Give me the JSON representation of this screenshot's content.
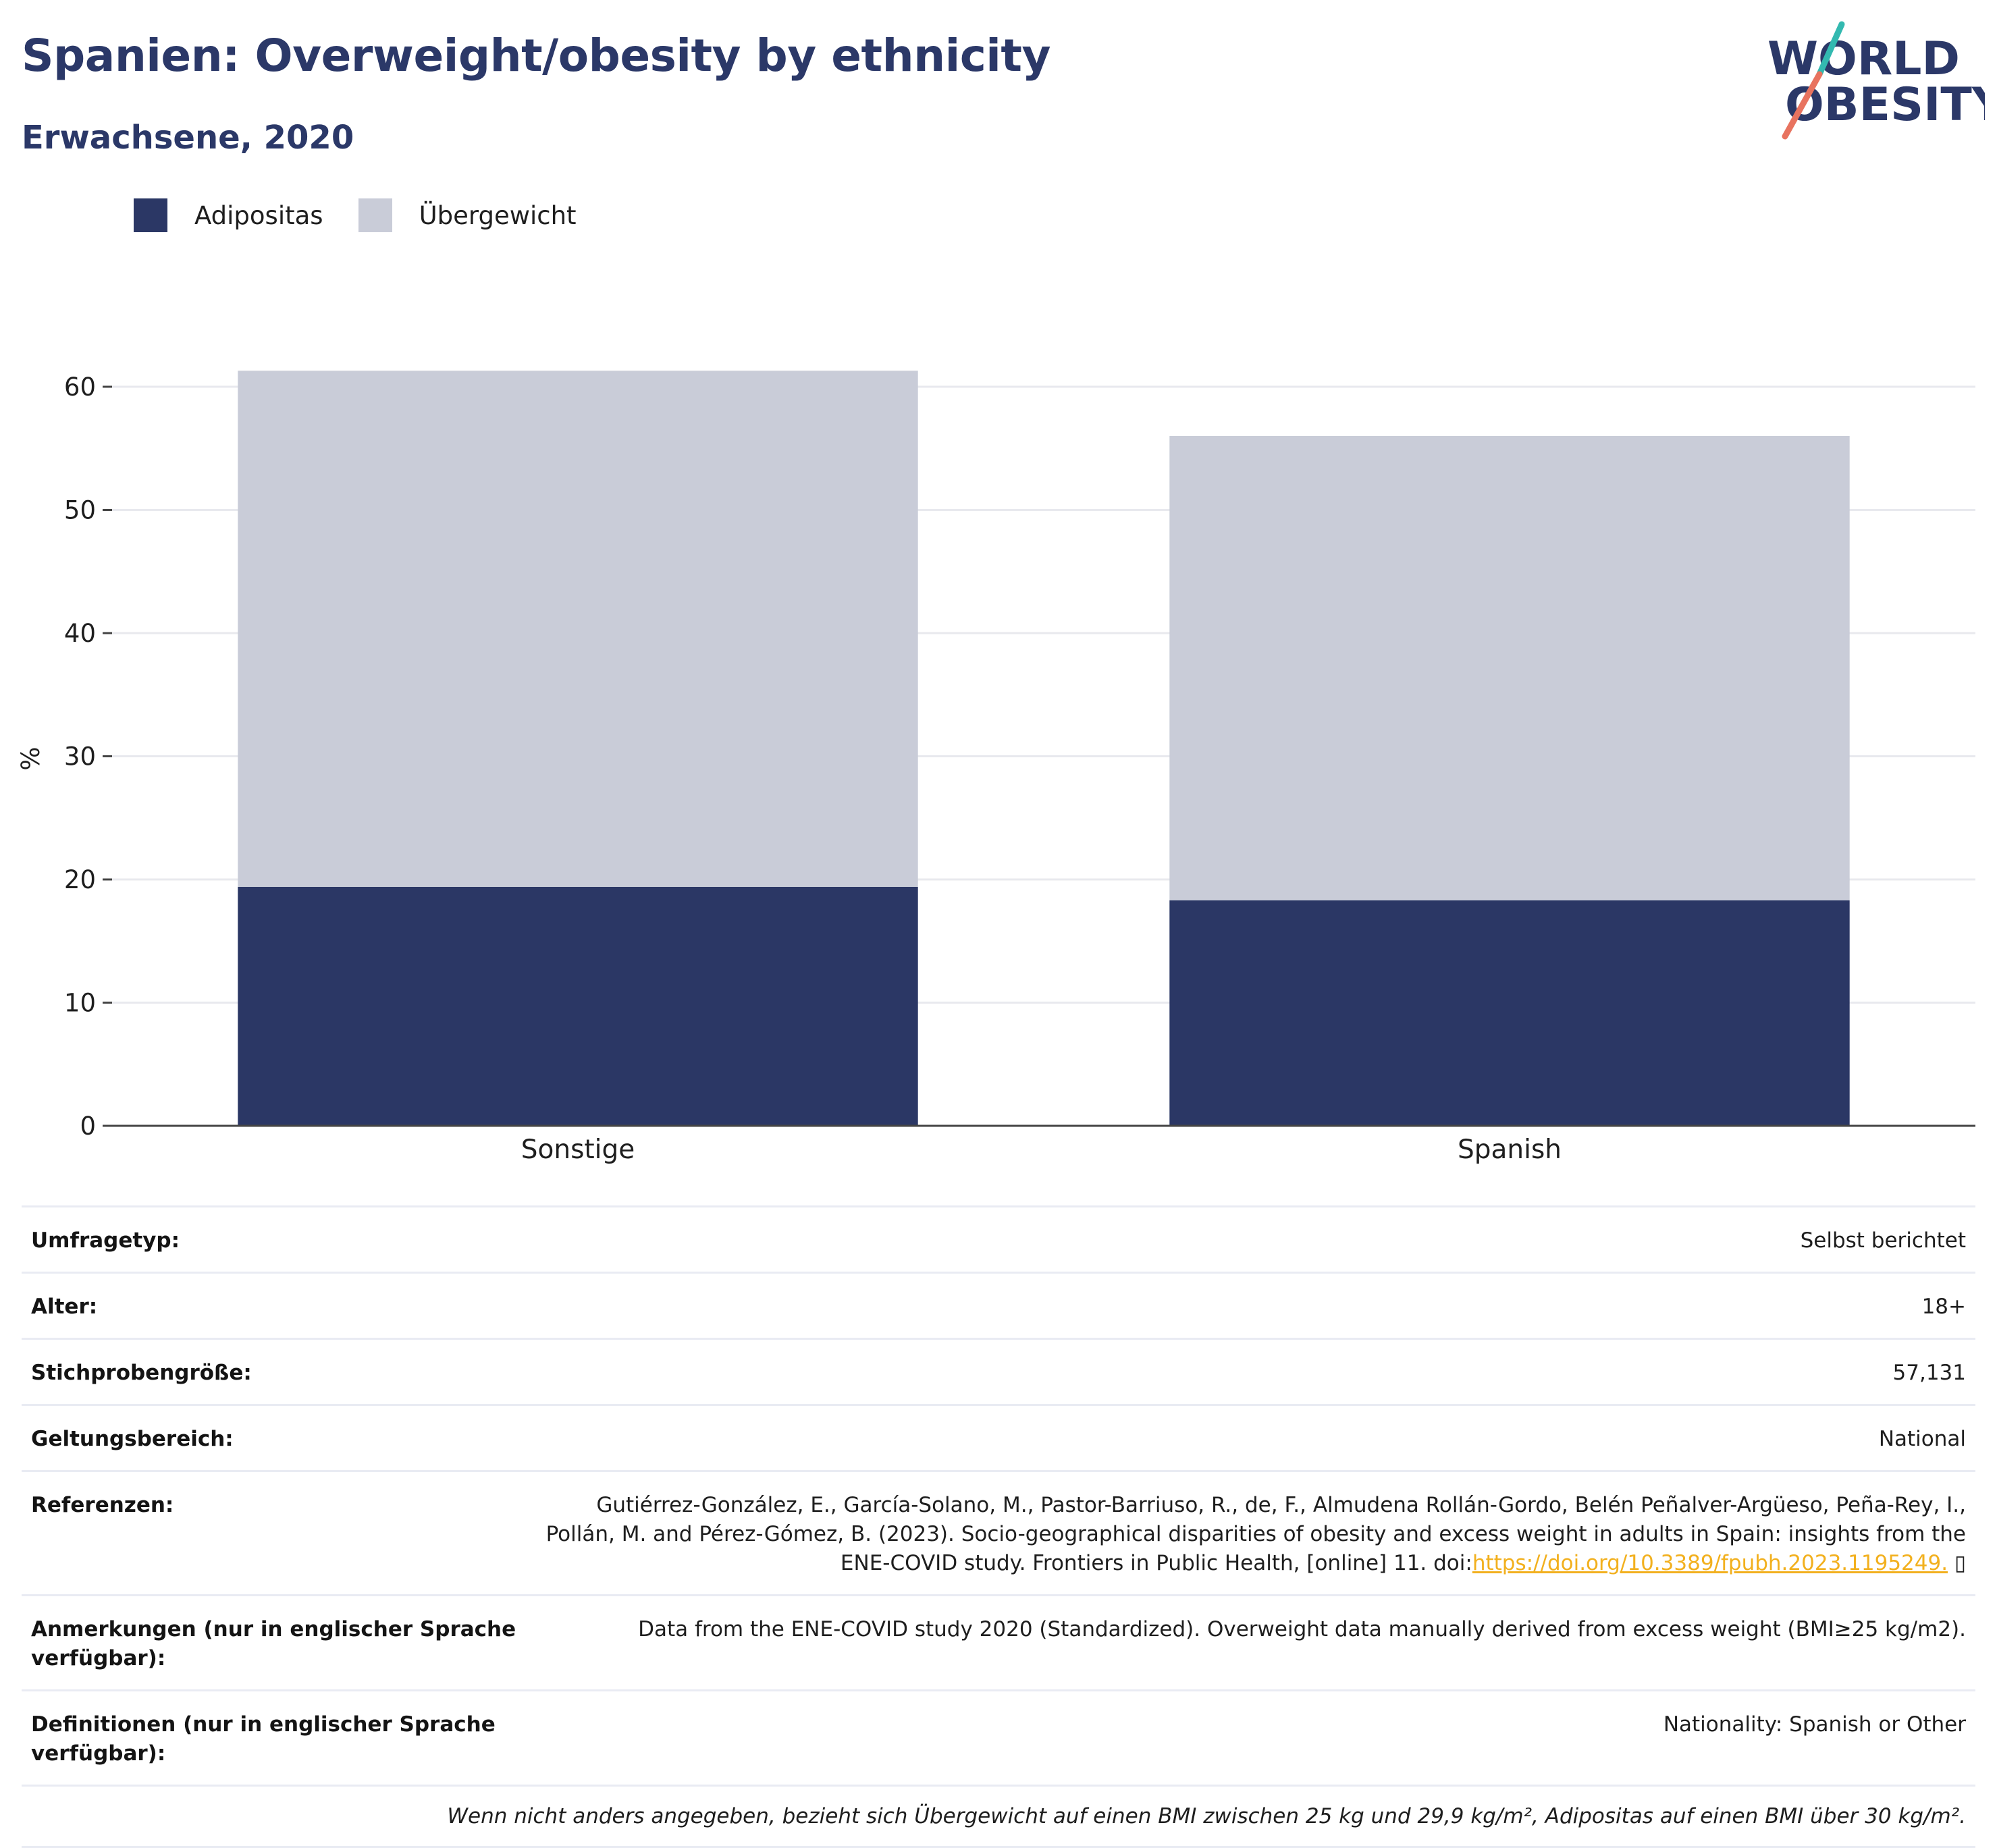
{
  "header": {
    "title": "Spanien: Overweight/obesity by ethnicity",
    "subtitle": "Erwachsene, 2020"
  },
  "logo": {
    "line1": "WORLD",
    "line2": "OBESITY",
    "colors": {
      "text": "#2b3868",
      "slash_top": "#33b9b0",
      "slash_bottom": "#e8735f"
    }
  },
  "colors": {
    "obesity": "#2b3765",
    "overweight": "#c9ccd8",
    "grid": "#e8e9ee",
    "axis": "#444444",
    "title": "#2b3868",
    "link": "#f2b01e"
  },
  "chart_data": {
    "type": "bar",
    "stacked": true,
    "categories": [
      "Sonstige",
      "Spanish"
    ],
    "series": [
      {
        "name": "Adipositas",
        "values": [
          19.4,
          18.3
        ]
      },
      {
        "name": "Übergewicht",
        "values": [
          41.9,
          37.7
        ]
      }
    ],
    "ylabel": "%",
    "ylim": [
      0,
      64
    ],
    "yticks": [
      0,
      10,
      20,
      30,
      40,
      50,
      60
    ],
    "grid": true,
    "legend_position": "top-left"
  },
  "info": {
    "rows": [
      {
        "label": "Umfragetyp:",
        "value": "Selbst berichtet"
      },
      {
        "label": "Alter:",
        "value": "18+"
      },
      {
        "label": "Stichprobengröße:",
        "value": "57,131"
      },
      {
        "label": "Geltungsbereich:",
        "value": "National"
      }
    ],
    "references": {
      "label": "Referenzen:",
      "text_line1": "Gutiérrez-González, E., García-Solano, M., Pastor-Barriuso, R., de, F., Almudena Rollán-Gordo, Belén Peñalver-Argüeso, Peña-Rey, I.,",
      "text_line2": "Pollán, M. and Pérez-Gómez, B. (2023). Socio-geographical disparities of obesity and excess weight in adults in Spain: insights from the",
      "text_line3": "ENE-COVID study. Frontiers in Public Health, [online] 11. doi:",
      "link": "https://doi.org/10.3389/fpubh.2023.1195249.",
      "link_icon": "▯"
    },
    "notes": {
      "label": "Anmerkungen (nur in englischer Sprache verfügbar):",
      "value": "Data from the ENE-COVID study 2020 (Standardized). Overweight data manually derived from excess weight (BMI≥25 kg/m2)."
    },
    "definitions": {
      "label": "Definitionen (nur in englischer Sprache verfügbar):",
      "value": "Nationality: Spanish or Other"
    },
    "footnote": "Wenn nicht anders angegeben, bezieht sich Übergewicht auf einen BMI zwischen 25 kg und 29,9 kg/m², Adipositas auf einen BMI über 30 kg/m²."
  }
}
